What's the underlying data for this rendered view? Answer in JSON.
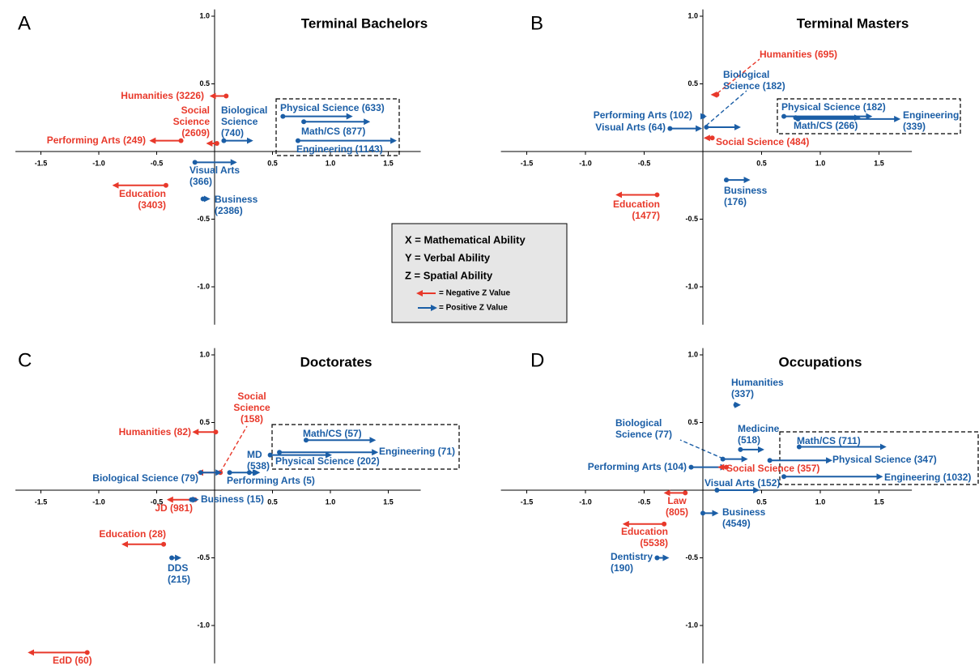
{
  "legend": {
    "lines": [
      "X = Mathematical Ability",
      "Y = Verbal Ability",
      "Z = Spatial Ability"
    ],
    "negative": "= Negative Z Value",
    "positive": "= Positive Z Value",
    "negative_color": "#e8392b",
    "positive_color": "#1b5ea6"
  },
  "chart_data": [
    {
      "type": "scatter",
      "panel": "A",
      "title": "Terminal Bachelors",
      "xlim": [
        -1.72,
        1.78
      ],
      "ylim": [
        -1.28,
        1.05
      ],
      "xticks": [
        -1.5,
        {
          "value": -1,
          "label": "-1.0"
        },
        -0.5,
        0.5,
        {
          "value": 1,
          "label": "1.0"
        },
        1.5
      ],
      "yticks": [
        {
          "value": 1,
          "label": "1.0"
        },
        0.5,
        -0.5,
        {
          "value": -1,
          "label": "-1.0"
        }
      ],
      "points": [
        {
          "label": [
            "Humanities (3226)"
          ],
          "x": 0.1,
          "y": 0.41,
          "z": -0.13
        },
        {
          "label": [
            "Social",
            "Science",
            "(2609)"
          ],
          "x": 0.02,
          "y": 0.06,
          "z": -0.08
        },
        {
          "label": [
            "Performing Arts (249)"
          ],
          "x": -0.29,
          "y": 0.08,
          "z": -0.26
        },
        {
          "label": [
            "Education",
            "(3403)"
          ],
          "x": -0.42,
          "y": -0.25,
          "z": -0.45
        },
        {
          "label": [
            "Biological",
            "Science",
            "(740)"
          ],
          "x": 0.08,
          "y": 0.08,
          "z": 0.24
        },
        {
          "label": [
            "Physical Science (633)"
          ],
          "x": 0.59,
          "y": 0.26,
          "z": 0.59
        },
        {
          "label": [
            "Math/CS (877)"
          ],
          "x": 0.77,
          "y": 0.22,
          "z": 0.56
        },
        {
          "label": [
            "Engineering (1143)"
          ],
          "x": 0.72,
          "y": 0.08,
          "z": 0.84
        },
        {
          "label": [
            "Visual Arts",
            "(366)"
          ],
          "x": -0.17,
          "y": -0.08,
          "z": 0.35
        },
        {
          "label": [
            "Business",
            "(2386)"
          ],
          "x": -0.1,
          "y": -0.35,
          "z": 0.05
        }
      ]
    },
    {
      "type": "scatter",
      "panel": "B",
      "title": "Terminal Masters",
      "xlim": [
        -1.72,
        1.78
      ],
      "ylim": [
        -1.28,
        1.05
      ],
      "xticks": [
        -1.5,
        {
          "value": -1,
          "label": "-1.0"
        },
        -0.5,
        0.5,
        {
          "value": 1,
          "label": "1.0"
        },
        1.5
      ],
      "yticks": [
        {
          "value": 1,
          "label": "1.0"
        },
        0.5,
        -0.5,
        {
          "value": -1,
          "label": "-1.0"
        }
      ],
      "points": [
        {
          "label": [
            "Humanities (695)"
          ],
          "x": 0.12,
          "y": 0.42,
          "z": -0.04
        },
        {
          "label": [
            "Biological",
            "Science (182)"
          ],
          "x": 0.03,
          "y": 0.18,
          "z": 0.28
        },
        {
          "label": [
            "Performing Arts (102)"
          ],
          "x": 0.0,
          "y": 0.26,
          "z": 0.02
        },
        {
          "label": [
            "Visual Arts (64)"
          ],
          "x": -0.28,
          "y": 0.17,
          "z": 0.26
        },
        {
          "label": [
            "Social Science (484)"
          ],
          "x": 0.08,
          "y": 0.1,
          "z": -0.06
        },
        {
          "label": [
            "Physical Science (182)"
          ],
          "x": 0.69,
          "y": 0.26,
          "z": 0.74
        },
        {
          "label": [
            "Math/CS (266)"
          ],
          "x": 0.79,
          "y": 0.25,
          "z": 0.54
        },
        {
          "label": [
            "Engineering",
            "(339)"
          ],
          "x": 0.81,
          "y": 0.24,
          "z": 0.86
        },
        {
          "label": [
            "Education",
            "(1477)"
          ],
          "x": -0.39,
          "y": -0.32,
          "z": -0.34
        },
        {
          "label": [
            "Business",
            "(176)"
          ],
          "x": 0.2,
          "y": -0.21,
          "z": 0.19
        }
      ]
    },
    {
      "type": "scatter",
      "panel": "C",
      "title": "Doctorates",
      "xlim": [
        -1.72,
        1.78
      ],
      "ylim": [
        -1.28,
        1.05
      ],
      "xticks": [
        -1.5,
        {
          "value": -1,
          "label": "-1.0"
        },
        -0.5,
        0.5,
        {
          "value": 1,
          "label": "1.0"
        },
        1.5
      ],
      "yticks": [
        {
          "value": 1,
          "label": "1.0"
        },
        0.5,
        -0.5,
        {
          "value": -1,
          "label": "-1.0"
        }
      ],
      "points": [
        {
          "label": [
            "Social",
            "Science",
            "(158)"
          ],
          "x": 0.05,
          "y": 0.13,
          "z": -0.19
        },
        {
          "label": [
            "Humanities (82)"
          ],
          "x": 0.01,
          "y": 0.43,
          "z": -0.19
        },
        {
          "label": [
            "MD",
            "(538)"
          ],
          "x": 0.3,
          "y": 0.13,
          "z": 0.07
        },
        {
          "label": [
            "Math/CS (57)"
          ],
          "x": 0.79,
          "y": 0.37,
          "z": 0.59
        },
        {
          "label": [
            "Engineering (71)"
          ],
          "x": 0.56,
          "y": 0.28,
          "z": 0.84
        },
        {
          "label": [
            "Physical Science (202)"
          ],
          "x": 0.48,
          "y": 0.26,
          "z": 0.52
        },
        {
          "label": [
            "Biological Science (79)"
          ],
          "x": -0.12,
          "y": 0.13,
          "z": 0.17
        },
        {
          "label": [
            "Performing Arts (5)"
          ],
          "x": 0.13,
          "y": 0.13,
          "z": 0.25
        },
        {
          "label": [
            "JD (981)"
          ],
          "x": -0.17,
          "y": -0.07,
          "z": -0.23
        },
        {
          "label": [
            "Business (15)"
          ],
          "x": -0.2,
          "y": -0.07,
          "z": 0.05
        },
        {
          "label": [
            "Education (28)"
          ],
          "x": -0.44,
          "y": -0.4,
          "z": -0.35
        },
        {
          "label": [
            "DDS",
            "(215)"
          ],
          "x": -0.37,
          "y": -0.5,
          "z": 0.07
        },
        {
          "label": [
            "EdD (60)"
          ],
          "x": -1.1,
          "y": -1.2,
          "z": -0.5
        }
      ]
    },
    {
      "type": "scatter",
      "panel": "D",
      "title": "Occupations",
      "xlim": [
        -1.72,
        1.78
      ],
      "ylim": [
        -1.28,
        1.05
      ],
      "xticks": [
        -1.5,
        {
          "value": -1,
          "label": "-1.0"
        },
        -0.5,
        0.5,
        {
          "value": 1,
          "label": "1.0"
        },
        1.5
      ],
      "yticks": [
        {
          "value": 1,
          "label": "1.0"
        },
        0.5,
        -0.5,
        {
          "value": -1,
          "label": "-1.0"
        }
      ],
      "points": [
        {
          "label": [
            "Humanities",
            "(337)"
          ],
          "x": 0.28,
          "y": 0.63,
          "z": 0.03
        },
        {
          "label": [
            "Medicine",
            "(518)"
          ],
          "x": 0.32,
          "y": 0.3,
          "z": 0.19
        },
        {
          "label": [
            "Math/CS (711)"
          ],
          "x": 0.82,
          "y": 0.32,
          "z": 0.73
        },
        {
          "label": [
            "Physical Science (347)"
          ],
          "x": 0.57,
          "y": 0.22,
          "z": 0.52
        },
        {
          "label": [
            "Engineering (1032)"
          ],
          "x": 0.69,
          "y": 0.1,
          "z": 0.83
        },
        {
          "label": [
            "Biological",
            "Science (77)"
          ],
          "x": 0.17,
          "y": 0.23,
          "z": 0.2
        },
        {
          "label": [
            "Performing Arts (104)"
          ],
          "x": -0.1,
          "y": 0.17,
          "z": 0.29
        },
        {
          "label": [
            "Social Science (357)"
          ],
          "x": 0.2,
          "y": 0.17,
          "z": -0.06
        },
        {
          "label": [
            "Visual Arts (152)"
          ],
          "x": 0.12,
          "y": 0.0,
          "z": 0.35
        },
        {
          "label": [
            "Law",
            "(805)"
          ],
          "x": -0.15,
          "y": -0.02,
          "z": -0.17
        },
        {
          "label": [
            "Business",
            "(4549)"
          ],
          "x": 0.0,
          "y": -0.17,
          "z": 0.12
        },
        {
          "label": [
            "Education",
            "(5538)"
          ],
          "x": -0.33,
          "y": -0.25,
          "z": -0.34
        },
        {
          "label": [
            "Dentistry",
            "(190)"
          ],
          "x": -0.39,
          "y": -0.5,
          "z": 0.09
        }
      ]
    }
  ]
}
